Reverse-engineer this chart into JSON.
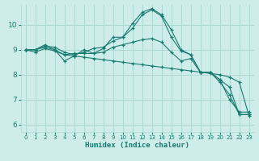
{
  "xlabel": "Humidex (Indice chaleur)",
  "bg_color": "#ceecea",
  "grid_color": "#aed8d4",
  "line_color": "#1a7a6e",
  "xlim": [
    -0.5,
    23.5
  ],
  "ylim": [
    5.7,
    10.8
  ],
  "xticks": [
    0,
    1,
    2,
    3,
    4,
    5,
    6,
    7,
    8,
    9,
    10,
    11,
    12,
    13,
    14,
    15,
    16,
    17,
    18,
    19,
    20,
    21,
    22,
    23
  ],
  "yticks": [
    6,
    7,
    8,
    9,
    10
  ],
  "lines": [
    {
      "x": [
        0,
        1,
        2,
        3,
        4,
        5,
        6,
        7,
        8,
        9,
        10,
        11,
        12,
        13,
        14,
        15,
        16,
        17,
        18,
        19,
        20,
        21,
        22,
        23
      ],
      "y": [
        9.0,
        9.0,
        9.2,
        9.0,
        8.55,
        8.75,
        9.0,
        8.85,
        9.05,
        9.5,
        9.5,
        10.05,
        10.5,
        10.65,
        10.4,
        9.8,
        9.0,
        8.8,
        8.1,
        8.1,
        7.8,
        7.0,
        6.5,
        6.5
      ]
    },
    {
      "x": [
        0,
        1,
        2,
        3,
        4,
        5,
        6,
        7,
        8,
        9,
        10,
        11,
        12,
        13,
        14,
        15,
        16,
        17,
        18,
        19,
        20,
        21,
        22,
        23
      ],
      "y": [
        9.0,
        9.0,
        9.15,
        9.1,
        8.9,
        8.8,
        8.9,
        9.05,
        9.1,
        9.35,
        9.5,
        9.85,
        10.4,
        10.6,
        10.35,
        9.5,
        8.95,
        8.8,
        8.1,
        8.1,
        7.8,
        7.5,
        6.4,
        6.4
      ]
    },
    {
      "x": [
        0,
        1,
        2,
        3,
        4,
        5,
        6,
        7,
        8,
        9,
        10,
        11,
        12,
        13,
        14,
        15,
        16,
        17,
        18,
        19,
        20,
        21,
        22,
        23
      ],
      "y": [
        9.0,
        9.0,
        9.1,
        9.0,
        8.8,
        8.85,
        8.85,
        8.85,
        8.9,
        9.1,
        9.2,
        9.3,
        9.4,
        9.45,
        9.3,
        8.9,
        8.55,
        8.65,
        8.1,
        8.1,
        7.7,
        7.2,
        6.4,
        6.4
      ]
    },
    {
      "x": [
        0,
        1,
        2,
        3,
        4,
        5,
        6,
        7,
        8,
        9,
        10,
        11,
        12,
        13,
        14,
        15,
        16,
        17,
        18,
        19,
        20,
        21,
        22,
        23
      ],
      "y": [
        9.0,
        8.9,
        9.05,
        8.95,
        8.8,
        8.75,
        8.7,
        8.65,
        8.6,
        8.55,
        8.5,
        8.45,
        8.4,
        8.35,
        8.3,
        8.25,
        8.2,
        8.15,
        8.1,
        8.05,
        8.0,
        7.9,
        7.7,
        6.35
      ]
    }
  ]
}
